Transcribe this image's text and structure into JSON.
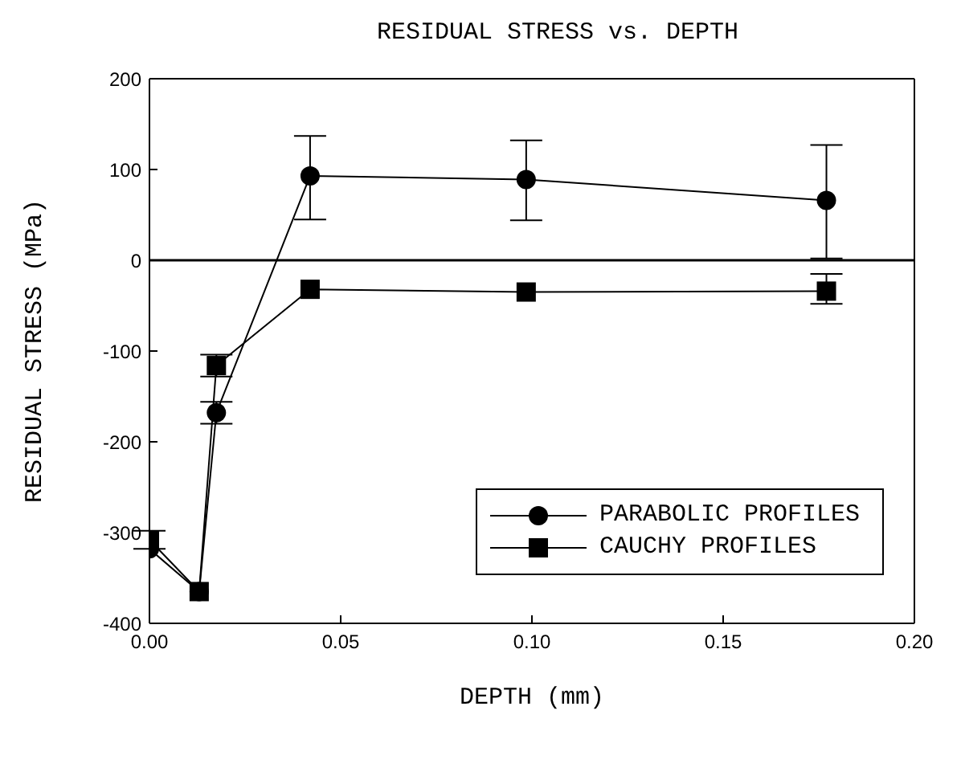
{
  "chart_data": {
    "type": "line",
    "title": "RESIDUAL STRESS vs. DEPTH",
    "xlabel": "DEPTH (mm)",
    "ylabel": "RESIDUAL STRESS (MPa)",
    "xlim": [
      0,
      0.2
    ],
    "xticks": [
      {
        "value": 0,
        "label": "0.00"
      },
      {
        "value": 0.05,
        "label": "0.05"
      },
      {
        "value": 0.1,
        "label": "0.10"
      },
      {
        "value": 0.15,
        "label": "0.15"
      },
      {
        "value": 0.2,
        "label": "0.20"
      }
    ],
    "ylim": [
      -400,
      200
    ],
    "yticks": [
      -400,
      -300,
      -200,
      -100,
      0,
      100,
      200
    ],
    "grid": false,
    "legend": "bottom right",
    "ref_lines": [
      {
        "axis": "y",
        "value": 0,
        "color": "#000000"
      }
    ],
    "series": [
      {
        "name": "PARABOLIC PROFILES",
        "color": "#000000",
        "marker": "circle",
        "x": [
          0,
          0.013,
          0.0175,
          0.042,
          0.0985,
          0.177
        ],
        "values": [
          -318,
          -365,
          -168,
          93,
          89,
          66
        ],
        "errors": [
          null,
          null,
          12,
          [
            45,
            137
          ],
          [
            44,
            132
          ],
          [
            2,
            127
          ]
        ]
      },
      {
        "name": "CAUCHY PROFILES",
        "color": "#000000",
        "marker": "square",
        "x": [
          0,
          0.013,
          0.0175,
          0.042,
          0.0985,
          0.177
        ],
        "values": [
          -308,
          -365,
          -116,
          -32,
          -35,
          -34
        ],
        "errors": [
          10,
          null,
          12,
          null,
          null,
          [
            -48,
            -15
          ]
        ]
      }
    ]
  }
}
